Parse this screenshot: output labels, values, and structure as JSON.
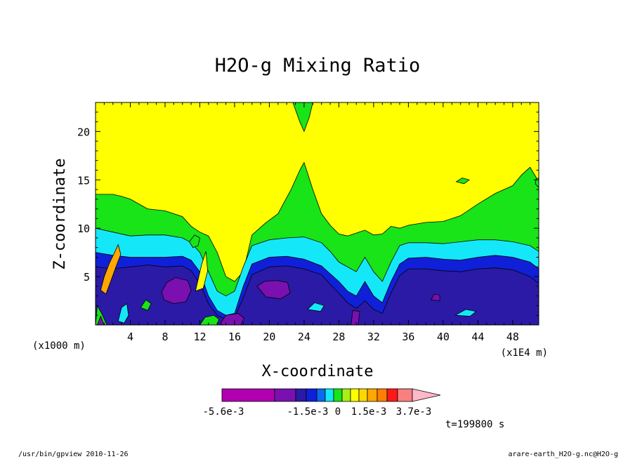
{
  "chart_data": {
    "type": "heatmap",
    "title": "H2O-g Mixing Ratio",
    "xlabel": "X-coordinate",
    "ylabel": "Z-coordinate",
    "x_unit": "(x1E4 m)",
    "y_unit": "(x1000 m)",
    "xlim": [
      0,
      51
    ],
    "ylim": [
      0,
      23
    ],
    "xticks": [
      4,
      8,
      12,
      16,
      20,
      24,
      28,
      32,
      36,
      40,
      44,
      48
    ],
    "yticks": [
      5,
      10,
      15,
      20
    ],
    "colorbar": {
      "colors": [
        "#b000b0",
        "#7a10b0",
        "#2a1aa6",
        "#1020d8",
        "#0a6af0",
        "#14e8f8",
        "#18e418",
        "#a8ee18",
        "#ffff00",
        "#ffd800",
        "#ffa800",
        "#ff8000",
        "#ff1818",
        "#f88080",
        "#ffb8c8"
      ],
      "tick_labels": [
        "-5.6e-3",
        "-1.5e-3",
        "0",
        "1.5e-3",
        "3.7e-3"
      ],
      "extend": "right"
    },
    "time_label": "t=199800 s",
    "footer_left": "/usr/bin/gpview  2010-11-26",
    "footer_right": "arare-earth_H2O-g.nc@H2O-g",
    "bands": [
      {
        "name": "green",
        "color": "#18e418",
        "top": [
          [
            0,
            13.5
          ],
          [
            2,
            13.5
          ],
          [
            3,
            13.3
          ],
          [
            4,
            13.0
          ],
          [
            6,
            12.0
          ],
          [
            8,
            11.8
          ],
          [
            10,
            11.2
          ],
          [
            11,
            10.2
          ],
          [
            12,
            9.6
          ],
          [
            13,
            9.2
          ],
          [
            14,
            7.5
          ],
          [
            15,
            5.0
          ],
          [
            16,
            4.5
          ],
          [
            17,
            5.5
          ],
          [
            18,
            9.3
          ],
          [
            19.5,
            10.5
          ],
          [
            21,
            11.5
          ],
          [
            22.5,
            14.0
          ],
          [
            23.5,
            16.0
          ],
          [
            24,
            16.8
          ],
          [
            25,
            14.0
          ],
          [
            26,
            11.5
          ],
          [
            27,
            10.3
          ],
          [
            28,
            9.4
          ],
          [
            29,
            9.2
          ],
          [
            30,
            9.5
          ],
          [
            31,
            9.8
          ],
          [
            32,
            9.3
          ],
          [
            33,
            9.4
          ],
          [
            34,
            10.2
          ],
          [
            35,
            10.0
          ],
          [
            36,
            10.3
          ],
          [
            38,
            10.6
          ],
          [
            40,
            10.7
          ],
          [
            42,
            11.3
          ],
          [
            44,
            12.5
          ],
          [
            46,
            13.6
          ],
          [
            48,
            14.4
          ],
          [
            49,
            15.5
          ],
          [
            50,
            16.3
          ],
          [
            51,
            14.8
          ]
        ]
      },
      {
        "name": "cyan",
        "color": "#14e8f8",
        "top": [
          [
            0,
            10.0
          ],
          [
            2,
            9.6
          ],
          [
            4,
            9.2
          ],
          [
            6,
            9.3
          ],
          [
            8,
            9.3
          ],
          [
            10,
            9.0
          ],
          [
            11,
            8.5
          ],
          [
            12,
            7.5
          ],
          [
            13,
            5.5
          ],
          [
            14,
            3.5
          ],
          [
            15,
            3.0
          ],
          [
            16,
            3.5
          ],
          [
            17,
            6.0
          ],
          [
            18,
            8.2
          ],
          [
            20,
            8.8
          ],
          [
            22,
            9.0
          ],
          [
            24,
            9.1
          ],
          [
            26,
            8.5
          ],
          [
            27,
            7.6
          ],
          [
            28,
            6.5
          ],
          [
            30,
            5.5
          ],
          [
            31,
            7.0
          ],
          [
            32,
            5.5
          ],
          [
            33,
            4.5
          ],
          [
            34,
            6.5
          ],
          [
            35,
            8.2
          ],
          [
            36,
            8.5
          ],
          [
            38,
            8.5
          ],
          [
            40,
            8.4
          ],
          [
            42,
            8.6
          ],
          [
            44,
            8.8
          ],
          [
            46,
            8.8
          ],
          [
            48,
            8.6
          ],
          [
            50,
            8.2
          ],
          [
            51,
            7.6
          ]
        ]
      },
      {
        "name": "blue",
        "color": "#1020d8",
        "top": [
          [
            0,
            7.5
          ],
          [
            2,
            7.2
          ],
          [
            4,
            7.0
          ],
          [
            6,
            7.0
          ],
          [
            8,
            7.0
          ],
          [
            10,
            7.1
          ],
          [
            11,
            6.7
          ],
          [
            12,
            5.5
          ],
          [
            13,
            3.0
          ],
          [
            14,
            1.5
          ],
          [
            15,
            1.0
          ],
          [
            16,
            1.2
          ],
          [
            17,
            4.0
          ],
          [
            18,
            6.3
          ],
          [
            20,
            7.0
          ],
          [
            22,
            7.1
          ],
          [
            24,
            6.8
          ],
          [
            26,
            6.1
          ],
          [
            27,
            5.3
          ],
          [
            28,
            4.5
          ],
          [
            29,
            3.5
          ],
          [
            30,
            3.0
          ],
          [
            31,
            4.5
          ],
          [
            32,
            3.0
          ],
          [
            33,
            2.3
          ],
          [
            34,
            4.5
          ],
          [
            35,
            6.3
          ],
          [
            36,
            6.9
          ],
          [
            38,
            7.0
          ],
          [
            40,
            6.8
          ],
          [
            42,
            6.7
          ],
          [
            44,
            7.0
          ],
          [
            46,
            7.2
          ],
          [
            48,
            7.0
          ],
          [
            50,
            6.5
          ],
          [
            51,
            5.8
          ]
        ]
      },
      {
        "name": "navy",
        "color": "#2a1aa6",
        "top": [
          [
            0,
            6.0
          ],
          [
            2,
            5.8
          ],
          [
            4,
            6.0
          ],
          [
            6,
            6.2
          ],
          [
            8,
            6.0
          ],
          [
            10,
            6.1
          ],
          [
            11,
            5.6
          ],
          [
            12,
            4.3
          ],
          [
            13,
            2.2
          ],
          [
            14,
            1.0
          ],
          [
            15,
            0.6
          ],
          [
            16,
            0.8
          ],
          [
            17,
            2.8
          ],
          [
            18,
            5.2
          ],
          [
            20,
            6.0
          ],
          [
            22,
            6.1
          ],
          [
            24,
            5.8
          ],
          [
            26,
            5.2
          ],
          [
            27,
            4.2
          ],
          [
            28,
            3.3
          ],
          [
            29,
            2.3
          ],
          [
            30,
            1.7
          ],
          [
            31,
            2.5
          ],
          [
            32,
            1.6
          ],
          [
            33,
            1.2
          ],
          [
            34,
            3.3
          ],
          [
            35,
            5.1
          ],
          [
            36,
            5.8
          ],
          [
            38,
            5.8
          ],
          [
            40,
            5.6
          ],
          [
            42,
            5.5
          ],
          [
            44,
            5.8
          ],
          [
            46,
            5.9
          ],
          [
            48,
            5.7
          ],
          [
            50,
            5.0
          ],
          [
            51,
            4.3
          ]
        ]
      }
    ],
    "blobs": [
      {
        "color": "#7a10b0",
        "points": [
          [
            7.6,
            3.4
          ],
          [
            8.2,
            4.4
          ],
          [
            9.2,
            4.9
          ],
          [
            10.6,
            4.6
          ],
          [
            11.0,
            3.6
          ],
          [
            10.4,
            2.4
          ],
          [
            9.0,
            2.2
          ],
          [
            7.9,
            2.6
          ]
        ]
      },
      {
        "color": "#7a10b0",
        "points": [
          [
            18.6,
            4.0
          ],
          [
            19.4,
            4.5
          ],
          [
            20.8,
            4.6
          ],
          [
            22.1,
            4.4
          ],
          [
            22.4,
            3.3
          ],
          [
            21.3,
            2.7
          ],
          [
            19.6,
            2.9
          ]
        ]
      },
      {
        "color": "#7a10b0",
        "points": [
          [
            14.4,
            0.2
          ],
          [
            15.0,
            1.0
          ],
          [
            16.4,
            1.2
          ],
          [
            17.1,
            0.7
          ],
          [
            16.7,
            0.0
          ],
          [
            14.6,
            0.0
          ]
        ]
      },
      {
        "color": "#7a10b0",
        "points": [
          [
            29.4,
            0.0
          ],
          [
            29.6,
            1.5
          ],
          [
            30.4,
            1.4
          ],
          [
            30.2,
            0.0
          ]
        ]
      },
      {
        "color": "#7a10b0",
        "points": [
          [
            38.6,
            2.6
          ],
          [
            39.0,
            3.2
          ],
          [
            39.6,
            3.1
          ],
          [
            39.6,
            2.5
          ]
        ]
      },
      {
        "color": "#18e418",
        "points": [
          [
            12.0,
            0.0
          ],
          [
            12.6,
            0.8
          ],
          [
            13.6,
            1.0
          ],
          [
            14.2,
            0.6
          ],
          [
            14.0,
            0.0
          ]
        ]
      },
      {
        "color": "#18e418",
        "points": [
          [
            22.7,
            23.0
          ],
          [
            23.5,
            21.0
          ],
          [
            24.0,
            20.0
          ],
          [
            24.6,
            21.5
          ],
          [
            25.0,
            23.0
          ]
        ]
      },
      {
        "color": "#18e418",
        "points": [
          [
            41.5,
            14.8
          ],
          [
            42.2,
            15.2
          ],
          [
            43.0,
            15.0
          ],
          [
            42.4,
            14.6
          ]
        ]
      },
      {
        "color": "#18e418",
        "points": [
          [
            50.6,
            14.6
          ],
          [
            51.0,
            14.2
          ],
          [
            51.0,
            15.2
          ],
          [
            50.7,
            15.1
          ]
        ]
      },
      {
        "color": "#18e418",
        "points": [
          [
            10.8,
            8.6
          ],
          [
            11.4,
            9.3
          ],
          [
            12.0,
            9.0
          ],
          [
            11.8,
            8.2
          ],
          [
            11.2,
            8.0
          ]
        ]
      },
      {
        "color": "#ffff00",
        "points": [
          [
            11.5,
            3.5
          ],
          [
            12.2,
            6.2
          ],
          [
            12.7,
            7.6
          ],
          [
            12.9,
            5.6
          ],
          [
            12.4,
            3.8
          ]
        ]
      },
      {
        "color": "#ffa800",
        "points": [
          [
            0.6,
            3.6
          ],
          [
            1.0,
            5.0
          ],
          [
            1.6,
            6.4
          ],
          [
            2.2,
            7.5
          ],
          [
            2.6,
            8.3
          ],
          [
            2.9,
            7.3
          ],
          [
            2.3,
            5.9
          ],
          [
            1.7,
            4.4
          ],
          [
            1.2,
            3.2
          ]
        ]
      },
      {
        "color": "#18e418",
        "points": [
          [
            0.0,
            0.0
          ],
          [
            0.2,
            2.0
          ],
          [
            0.7,
            1.2
          ],
          [
            1.3,
            0.0
          ]
        ]
      },
      {
        "color": "#7a10b0",
        "points": [
          [
            0.2,
            0.0
          ],
          [
            0.6,
            0.9
          ],
          [
            1.0,
            0.0
          ]
        ]
      },
      {
        "color": "#14e8f8",
        "points": [
          [
            2.6,
            0.4
          ],
          [
            3.0,
            1.8
          ],
          [
            3.6,
            2.2
          ],
          [
            3.8,
            1.0
          ],
          [
            3.3,
            0.2
          ]
        ]
      },
      {
        "color": "#18e418",
        "points": [
          [
            5.2,
            1.8
          ],
          [
            5.8,
            2.6
          ],
          [
            6.4,
            2.2
          ],
          [
            6.0,
            1.5
          ]
        ]
      },
      {
        "color": "#14e8f8",
        "points": [
          [
            24.4,
            1.6
          ],
          [
            25.2,
            2.3
          ],
          [
            26.3,
            2.0
          ],
          [
            25.9,
            1.4
          ]
        ]
      },
      {
        "color": "#14e8f8",
        "points": [
          [
            41.4,
            1.0
          ],
          [
            42.6,
            1.6
          ],
          [
            43.8,
            1.4
          ],
          [
            43.1,
            0.9
          ]
        ]
      }
    ]
  }
}
